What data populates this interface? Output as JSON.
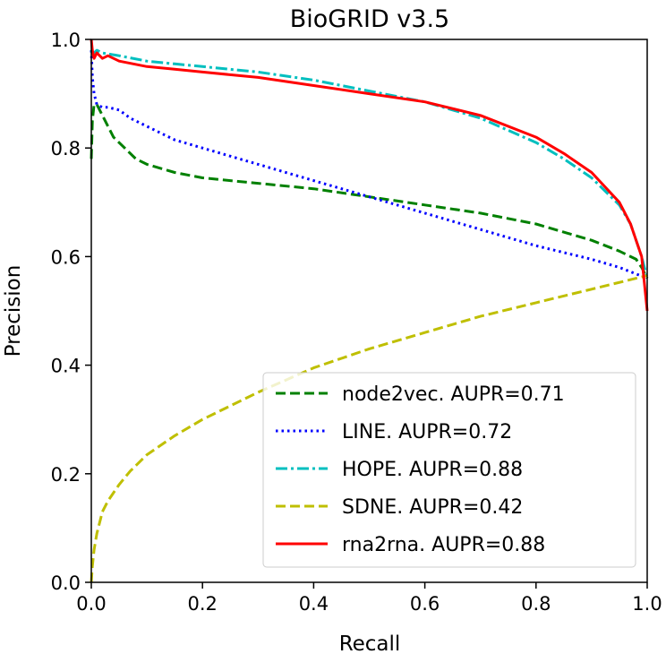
{
  "chart_data": {
    "type": "line",
    "title": "BioGRID v3.5",
    "xlabel": "Recall",
    "ylabel": "Precision",
    "xlim": [
      0,
      1
    ],
    "ylim": [
      0,
      1
    ],
    "xticks": [
      "0.0",
      "0.2",
      "0.4",
      "0.6",
      "0.8",
      "1.0"
    ],
    "yticks": [
      "0.0",
      "0.2",
      "0.4",
      "0.6",
      "0.8",
      "1.0"
    ],
    "grid": false,
    "legend_position": "lower-right",
    "series": [
      {
        "name": "node2vec. AUPR=0.71",
        "color": "#008000",
        "dash": "dashed",
        "x": [
          0.0,
          0.002,
          0.005,
          0.01,
          0.02,
          0.04,
          0.06,
          0.08,
          0.1,
          0.15,
          0.2,
          0.25,
          0.3,
          0.4,
          0.5,
          0.6,
          0.7,
          0.8,
          0.9,
          0.95,
          0.98,
          0.99,
          1.0
        ],
        "y": [
          0.78,
          0.85,
          0.88,
          0.88,
          0.86,
          0.82,
          0.8,
          0.78,
          0.77,
          0.755,
          0.745,
          0.74,
          0.735,
          0.725,
          0.71,
          0.695,
          0.68,
          0.66,
          0.63,
          0.61,
          0.595,
          0.58,
          0.56
        ]
      },
      {
        "name": "LINE. AUPR=0.72",
        "color": "#0000ff",
        "dash": "dotted",
        "x": [
          0.0,
          0.002,
          0.005,
          0.01,
          0.02,
          0.03,
          0.05,
          0.07,
          0.1,
          0.15,
          0.2,
          0.3,
          0.4,
          0.5,
          0.6,
          0.7,
          0.8,
          0.9,
          0.95,
          1.0
        ],
        "y": [
          0.98,
          0.93,
          0.9,
          0.88,
          0.875,
          0.875,
          0.87,
          0.855,
          0.84,
          0.815,
          0.8,
          0.77,
          0.74,
          0.71,
          0.68,
          0.65,
          0.62,
          0.595,
          0.58,
          0.56
        ]
      },
      {
        "name": "HOPE. AUPR=0.88",
        "color": "#00bfbf",
        "dash": "dashdot",
        "x": [
          0.0,
          0.002,
          0.005,
          0.01,
          0.02,
          0.05,
          0.1,
          0.15,
          0.2,
          0.3,
          0.4,
          0.5,
          0.6,
          0.7,
          0.8,
          0.85,
          0.9,
          0.95,
          0.97,
          0.99,
          1.0
        ],
        "y": [
          0.98,
          0.975,
          0.975,
          0.98,
          0.975,
          0.97,
          0.96,
          0.955,
          0.95,
          0.94,
          0.925,
          0.905,
          0.885,
          0.855,
          0.81,
          0.78,
          0.745,
          0.695,
          0.66,
          0.6,
          0.56
        ]
      },
      {
        "name": "SDNE. AUPR=0.42",
        "color": "#bfbf00",
        "dash": "dashed",
        "x": [
          0.0,
          0.002,
          0.005,
          0.01,
          0.02,
          0.03,
          0.05,
          0.07,
          0.1,
          0.15,
          0.2,
          0.3,
          0.4,
          0.5,
          0.6,
          0.7,
          0.8,
          0.9,
          1.0
        ],
        "y": [
          0.0,
          0.03,
          0.06,
          0.09,
          0.13,
          0.15,
          0.18,
          0.205,
          0.235,
          0.27,
          0.3,
          0.35,
          0.395,
          0.43,
          0.46,
          0.49,
          0.515,
          0.54,
          0.565
        ]
      },
      {
        "name": "rna2rna. AUPR=0.88",
        "color": "#ff0000",
        "dash": "solid",
        "x": [
          0.0,
          0.002,
          0.005,
          0.01,
          0.02,
          0.03,
          0.05,
          0.1,
          0.15,
          0.2,
          0.3,
          0.4,
          0.5,
          0.6,
          0.7,
          0.8,
          0.85,
          0.9,
          0.95,
          0.97,
          0.99,
          1.0
        ],
        "y": [
          1.0,
          0.98,
          0.965,
          0.975,
          0.965,
          0.97,
          0.96,
          0.95,
          0.945,
          0.94,
          0.93,
          0.915,
          0.9,
          0.885,
          0.86,
          0.82,
          0.79,
          0.755,
          0.7,
          0.66,
          0.6,
          0.5
        ]
      }
    ]
  }
}
